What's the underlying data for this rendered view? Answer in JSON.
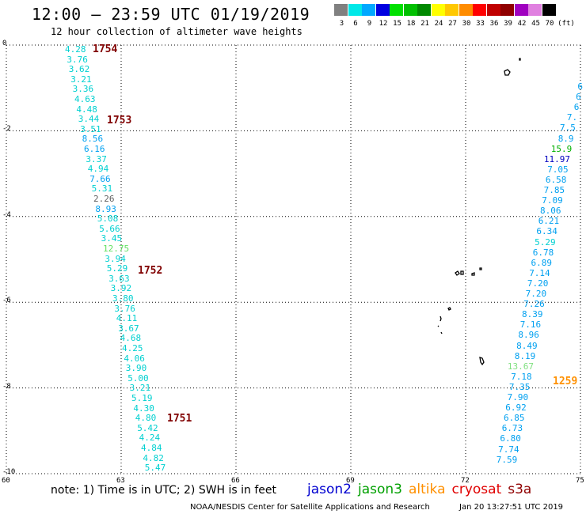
{
  "header": {
    "title": "12:00 — 23:59 UTC 01/19/2019",
    "subtitle": "12 hour collection of altimeter wave heights"
  },
  "color_scale": {
    "unit": "(ft)",
    "bins": [
      {
        "label": "3",
        "color": "#808080"
      },
      {
        "label": "6",
        "color": "#00e8e8"
      },
      {
        "label": "9",
        "color": "#00a8ff"
      },
      {
        "label": "12",
        "color": "#0000e0"
      },
      {
        "label": "15",
        "color": "#00e000"
      },
      {
        "label": "18",
        "color": "#00c000"
      },
      {
        "label": "21",
        "color": "#008800"
      },
      {
        "label": "24",
        "color": "#ffff00"
      },
      {
        "label": "27",
        "color": "#ffc800"
      },
      {
        "label": "30",
        "color": "#ff8c00"
      },
      {
        "label": "33",
        "color": "#ff0000"
      },
      {
        "label": "36",
        "color": "#c00000"
      },
      {
        "label": "39",
        "color": "#900000"
      },
      {
        "label": "42",
        "color": "#a000c0"
      },
      {
        "label": "45",
        "color": "#e080e0"
      },
      {
        "label": "70",
        "color": "#000000"
      }
    ]
  },
  "map": {
    "lat_labels": [
      "0",
      "-2",
      "-4",
      "-6",
      "-8",
      "-10"
    ],
    "lon_labels": [
      "60",
      "63",
      "66",
      "69",
      "72",
      "75"
    ],
    "lat_values": [
      0,
      -2,
      -4,
      -6,
      -8,
      -10
    ],
    "lon_values": [
      60,
      63,
      66,
      69,
      72,
      75
    ]
  },
  "tracks": {
    "west": {
      "points": [
        {
          "v": "4.28",
          "c": "#00d0d0"
        },
        {
          "v": "3.76",
          "c": "#00d0d0"
        },
        {
          "v": "3.62",
          "c": "#00d0d0"
        },
        {
          "v": "3.21",
          "c": "#00d0d0"
        },
        {
          "v": "3.36",
          "c": "#00d0d0"
        },
        {
          "v": "4.63",
          "c": "#00d0d0"
        },
        {
          "v": "4.48",
          "c": "#00d0d0"
        },
        {
          "v": "3.44",
          "c": "#00d0d0"
        },
        {
          "v": "3.51",
          "c": "#00d0d0"
        },
        {
          "v": "8.56",
          "c": "#00a0f0"
        },
        {
          "v": "6.16",
          "c": "#00a0f0"
        },
        {
          "v": "3.37",
          "c": "#00d0d0"
        },
        {
          "v": "4.94",
          "c": "#00d0d0"
        },
        {
          "v": "7.66",
          "c": "#00a0f0"
        },
        {
          "v": "5.31",
          "c": "#00d0d0"
        },
        {
          "v": "2.26",
          "c": "#606060"
        },
        {
          "v": "8.93",
          "c": "#00a0f0"
        },
        {
          "v": "5.08",
          "c": "#00d0d0"
        },
        {
          "v": "5.66",
          "c": "#00d0d0"
        },
        {
          "v": "3.45",
          "c": "#00d0d0"
        },
        {
          "v": "12.75",
          "c": "#60e060"
        },
        {
          "v": "3.94",
          "c": "#00d0d0"
        },
        {
          "v": "5.29",
          "c": "#00d0d0"
        },
        {
          "v": "3.63",
          "c": "#00d0d0"
        },
        {
          "v": "3.92",
          "c": "#00d0d0"
        },
        {
          "v": "3.80",
          "c": "#00d0d0"
        },
        {
          "v": "3.76",
          "c": "#00d0d0"
        },
        {
          "v": "4.11",
          "c": "#00d0d0"
        },
        {
          "v": "3.67",
          "c": "#00d0d0"
        },
        {
          "v": "4.68",
          "c": "#00d0d0"
        },
        {
          "v": "4.25",
          "c": "#00d0d0"
        },
        {
          "v": "4.06",
          "c": "#00d0d0"
        },
        {
          "v": "3.90",
          "c": "#00d0d0"
        },
        {
          "v": "5.00",
          "c": "#00d0d0"
        },
        {
          "v": "3.21",
          "c": "#00d0d0"
        },
        {
          "v": "5.19",
          "c": "#00d0d0"
        },
        {
          "v": "4.30",
          "c": "#00d0d0"
        },
        {
          "v": "4.80",
          "c": "#00d0d0"
        },
        {
          "v": "5.42",
          "c": "#00d0d0"
        },
        {
          "v": "4.24",
          "c": "#00d0d0"
        },
        {
          "v": "4.84",
          "c": "#00d0d0"
        },
        {
          "v": "4.82",
          "c": "#00d0d0"
        },
        {
          "v": "5.47",
          "c": "#00d0d0"
        }
      ],
      "times": [
        {
          "t": "1754",
          "c": "#800000"
        },
        {
          "t": "1753",
          "c": "#800000"
        },
        {
          "t": "1752",
          "c": "#800000"
        },
        {
          "t": "1751",
          "c": "#800000"
        }
      ]
    },
    "east": {
      "points": [
        {
          "v": "6",
          "c": "#00a0f0"
        },
        {
          "v": "6",
          "c": "#00a0f0"
        },
        {
          "v": "6",
          "c": "#00a0f0"
        },
        {
          "v": "7.",
          "c": "#00a0f0"
        },
        {
          "v": "7.5",
          "c": "#00a0f0"
        },
        {
          "v": "8.9",
          "c": "#00a0f0"
        },
        {
          "v": "15.9",
          "c": "#00b000"
        },
        {
          "v": "11.97",
          "c": "#0000c0"
        },
        {
          "v": "7.05",
          "c": "#00a0f0"
        },
        {
          "v": "6.58",
          "c": "#00a0f0"
        },
        {
          "v": "7.85",
          "c": "#00a0f0"
        },
        {
          "v": "7.09",
          "c": "#00a0f0"
        },
        {
          "v": "8.06",
          "c": "#00a0f0"
        },
        {
          "v": "6.21",
          "c": "#00a0f0"
        },
        {
          "v": "6.34",
          "c": "#00a0f0"
        },
        {
          "v": "5.29",
          "c": "#00d0d0"
        },
        {
          "v": "6.78",
          "c": "#00a0f0"
        },
        {
          "v": "6.89",
          "c": "#00a0f0"
        },
        {
          "v": "7.14",
          "c": "#00a0f0"
        },
        {
          "v": "7.20",
          "c": "#00a0f0"
        },
        {
          "v": "7.20",
          "c": "#00a0f0"
        },
        {
          "v": "7.26",
          "c": "#00a0f0"
        },
        {
          "v": "8.39",
          "c": "#00a0f0"
        },
        {
          "v": "7.16",
          "c": "#00a0f0"
        },
        {
          "v": "8.96",
          "c": "#00a0f0"
        },
        {
          "v": "8.49",
          "c": "#00a0f0"
        },
        {
          "v": "8.19",
          "c": "#00a0f0"
        },
        {
          "v": "13.67",
          "c": "#80e080"
        },
        {
          "v": "7.18",
          "c": "#00a0f0"
        },
        {
          "v": "7.35",
          "c": "#00a0f0"
        },
        {
          "v": "7.90",
          "c": "#00a0f0"
        },
        {
          "v": "6.92",
          "c": "#00a0f0"
        },
        {
          "v": "6.85",
          "c": "#00a0f0"
        },
        {
          "v": "6.73",
          "c": "#00a0f0"
        },
        {
          "v": "6.80",
          "c": "#00a0f0"
        },
        {
          "v": "7.74",
          "c": "#00a0f0"
        },
        {
          "v": "7.59",
          "c": "#00a0f0"
        }
      ],
      "times": [
        {
          "t": "1259",
          "c": "#ff9000"
        }
      ]
    }
  },
  "note": "note: 1) Time is in UTC; 2) SWH is in feet",
  "legend": [
    {
      "name": "jason2",
      "color": "#0000d0"
    },
    {
      "name": "jason3",
      "color": "#00a000"
    },
    {
      "name": "altika",
      "color": "#ff9000"
    },
    {
      "name": "cryosat",
      "color": "#e00000"
    },
    {
      "name": "s3a",
      "color": "#900000"
    }
  ],
  "footer": {
    "source": "NOAA/NESDIS Center for Satellite Applications and Research",
    "timestamp": "Jan 20 13:27:51 UTC 2019"
  }
}
